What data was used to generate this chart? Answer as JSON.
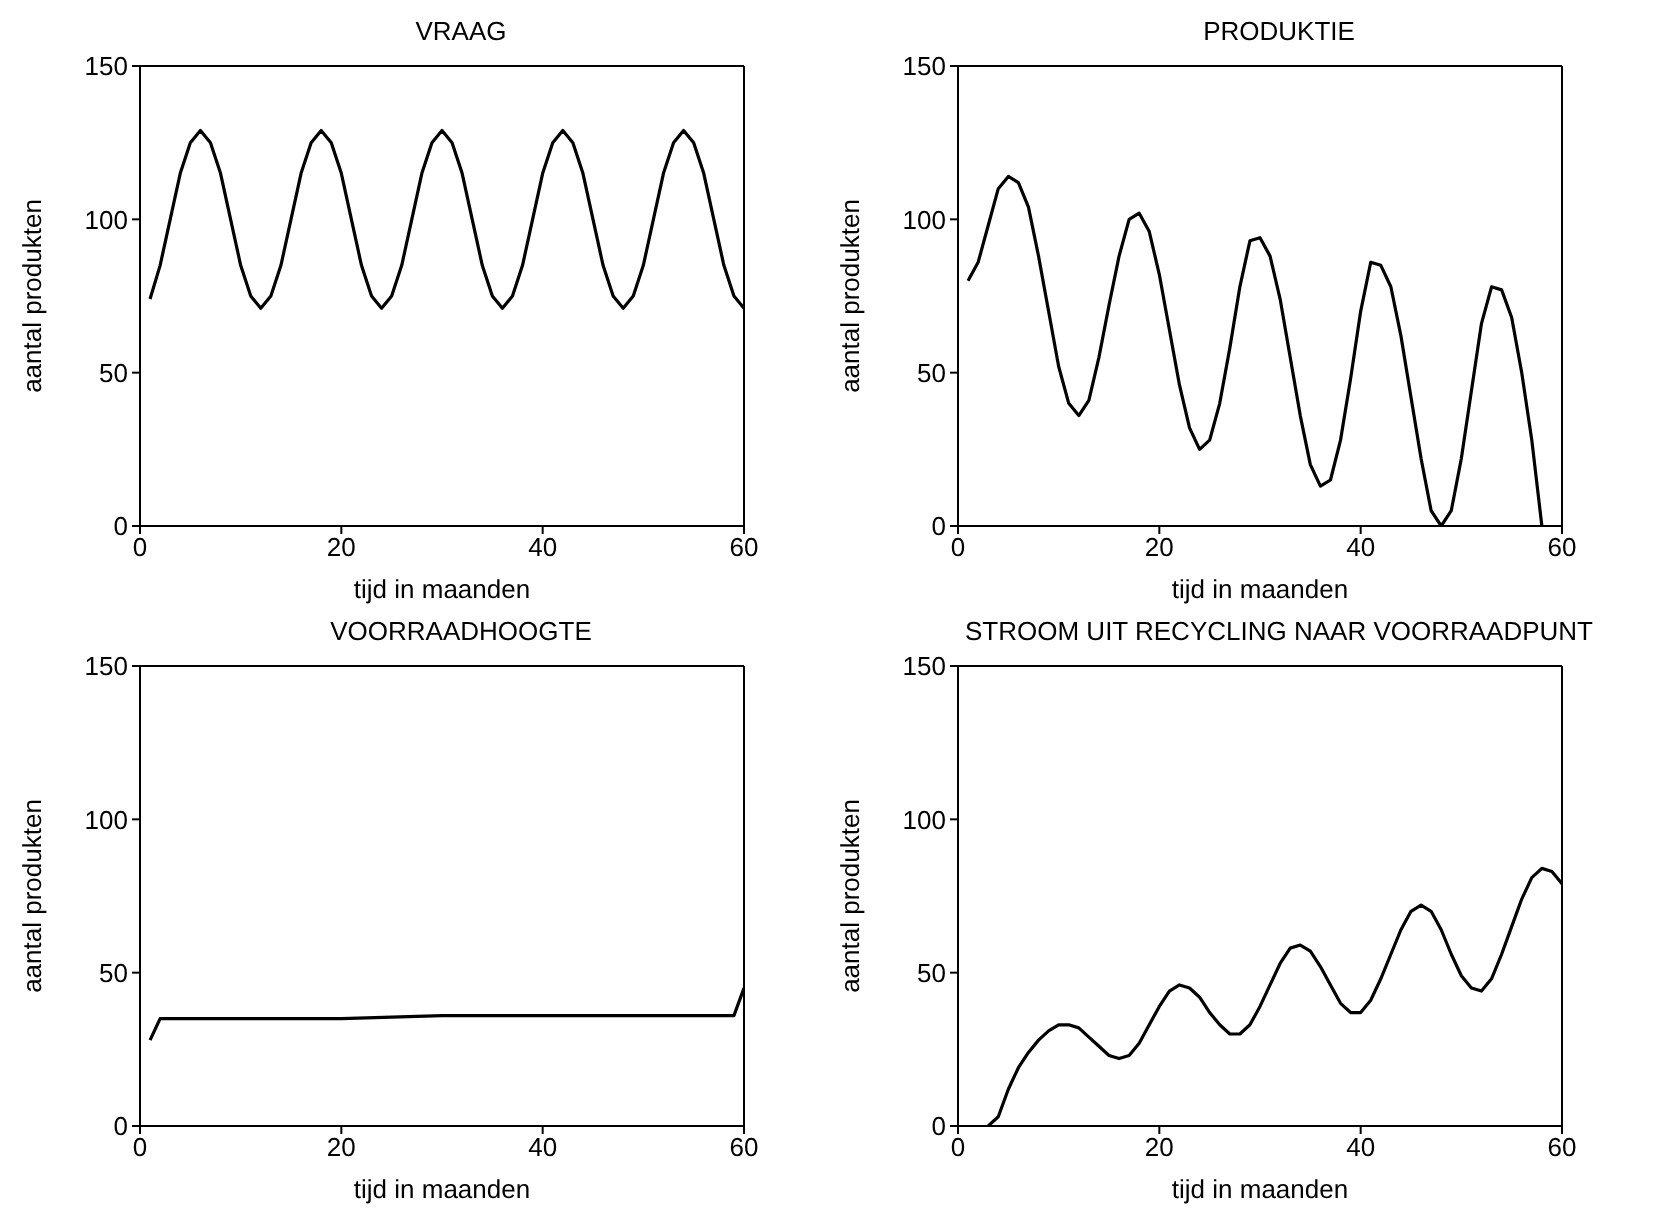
{
  "chart_data": [
    {
      "type": "line",
      "title": "VRAAG",
      "xlabel": "tijd in maanden",
      "ylabel": "aantal produkten",
      "color": "#000000",
      "xlim": [
        0,
        60
      ],
      "ylim": [
        0,
        150
      ],
      "xticks": [
        0,
        20,
        40,
        60
      ],
      "yticks": [
        0,
        50,
        100,
        150
      ],
      "x": [
        1,
        2,
        3,
        4,
        5,
        6,
        7,
        8,
        9,
        10,
        11,
        12,
        13,
        14,
        15,
        16,
        17,
        18,
        19,
        20,
        21,
        22,
        23,
        24,
        25,
        26,
        27,
        28,
        29,
        30,
        31,
        32,
        33,
        34,
        35,
        36,
        37,
        38,
        39,
        40,
        41,
        42,
        43,
        44,
        45,
        46,
        47,
        48,
        49,
        50,
        51,
        52,
        53,
        54,
        55,
        56,
        57,
        58,
        59,
        60
      ],
      "values": [
        74,
        85,
        100,
        115,
        125,
        129,
        125,
        115,
        100,
        85,
        75,
        71,
        75,
        85,
        100,
        115,
        125,
        129,
        125,
        115,
        100,
        85,
        75,
        71,
        75,
        85,
        100,
        115,
        125,
        129,
        125,
        115,
        100,
        85,
        75,
        71,
        75,
        85,
        100,
        115,
        125,
        129,
        125,
        115,
        100,
        85,
        75,
        71,
        75,
        85,
        100,
        115,
        125,
        129,
        125,
        115,
        100,
        85,
        75,
        71
      ]
    },
    {
      "type": "line",
      "title": "PRODUKTIE",
      "xlabel": "tijd in maanden",
      "ylabel": "aantal produkten",
      "color": "#000000",
      "xlim": [
        0,
        60
      ],
      "ylim": [
        0,
        150
      ],
      "xticks": [
        0,
        20,
        40,
        60
      ],
      "yticks": [
        0,
        50,
        100,
        150
      ],
      "x": [
        1,
        2,
        3,
        4,
        5,
        6,
        7,
        8,
        9,
        10,
        11,
        12,
        13,
        14,
        15,
        16,
        17,
        18,
        19,
        20,
        21,
        22,
        23,
        24,
        25,
        26,
        27,
        28,
        29,
        30,
        31,
        32,
        33,
        34,
        35,
        36,
        37,
        38,
        39,
        40,
        41,
        42,
        43,
        44,
        45,
        46,
        47,
        48,
        49,
        50,
        51,
        52,
        53,
        54,
        55,
        56,
        57,
        58
      ],
      "values": [
        80,
        86,
        98,
        110,
        114,
        112,
        104,
        88,
        70,
        52,
        40,
        36,
        41,
        55,
        72,
        88,
        100,
        102,
        96,
        82,
        64,
        46,
        32,
        25,
        28,
        40,
        58,
        78,
        93,
        94,
        88,
        74,
        55,
        36,
        20,
        13,
        15,
        28,
        48,
        70,
        86,
        85,
        78,
        62,
        42,
        22,
        5,
        0,
        5,
        22,
        44,
        66,
        78,
        77,
        68,
        50,
        28,
        0
      ]
    },
    {
      "type": "line",
      "title": "VOORRAADHOOGTE",
      "xlabel": "tijd in maanden",
      "ylabel": "aantal produkten",
      "color": "#000000",
      "xlim": [
        0,
        60
      ],
      "ylim": [
        0,
        150
      ],
      "xticks": [
        0,
        20,
        40,
        60
      ],
      "yticks": [
        0,
        50,
        100,
        150
      ],
      "x": [
        1,
        2,
        10,
        20,
        30,
        40,
        50,
        59,
        60
      ],
      "values": [
        28,
        35,
        35,
        35,
        36,
        36,
        36,
        36,
        45
      ]
    },
    {
      "type": "line",
      "title": "STROOM UIT RECYCLING NAAR VOORRAADPUNT",
      "xlabel": "tijd in maanden",
      "ylabel": "aantal produkten",
      "color": "#000000",
      "xlim": [
        0,
        60
      ],
      "ylim": [
        0,
        150
      ],
      "xticks": [
        0,
        20,
        40,
        60
      ],
      "yticks": [
        0,
        50,
        100,
        150
      ],
      "x": [
        3,
        4,
        5,
        6,
        7,
        8,
        9,
        10,
        11,
        12,
        13,
        14,
        15,
        16,
        17,
        18,
        19,
        20,
        21,
        22,
        23,
        24,
        25,
        26,
        27,
        28,
        29,
        30,
        31,
        32,
        33,
        34,
        35,
        36,
        37,
        38,
        39,
        40,
        41,
        42,
        43,
        44,
        45,
        46,
        47,
        48,
        49,
        50,
        51,
        52,
        53,
        54,
        55,
        56,
        57,
        58,
        59,
        60
      ],
      "values": [
        0,
        3,
        12,
        19,
        24,
        28,
        31,
        33,
        33,
        32,
        29,
        26,
        23,
        22,
        23,
        27,
        33,
        39,
        44,
        46,
        45,
        42,
        37,
        33,
        30,
        30,
        33,
        39,
        46,
        53,
        58,
        59,
        57,
        52,
        46,
        40,
        37,
        37,
        41,
        48,
        56,
        64,
        70,
        72,
        70,
        64,
        56,
        49,
        45,
        44,
        48,
        56,
        65,
        74,
        81,
        84,
        83,
        79
      ]
    }
  ]
}
